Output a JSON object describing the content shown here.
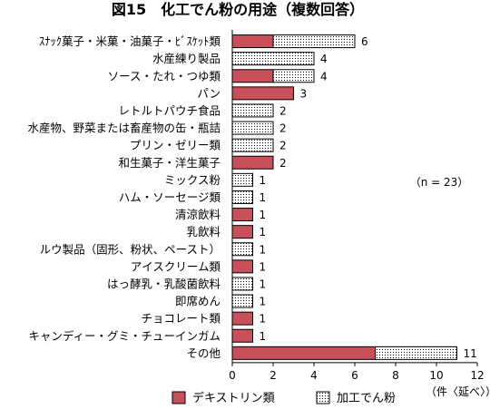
{
  "chart_data": {
    "type": "bar",
    "orientation": "horizontal",
    "stacked": true,
    "title": "図15　化工でん粉の用途（複数回答）",
    "categories": [
      "ｽﾅｯｸ菓子・米菓・油菓子・ﾋﾞｽｹｯﾄ類",
      "水産練り製品",
      "ソース・たれ・つゆ類",
      "パン",
      "レトルトパウチ食品",
      "水産物、野菜または畜産物の缶・瓶詰",
      "プリン・ゼリー類",
      "和生菓子・洋生菓子",
      "ミックス粉",
      "ハム・ソーセージ類",
      "清涼飲料",
      "乳飲料",
      "ルウ製品（固形、粉状、ペースト）",
      "アイスクリーム類",
      "はっ酵乳・乳酸菌飲料",
      "即席めん",
      "チョコレート類",
      "キャンディー・グミ・チューインガム",
      "その他"
    ],
    "series": [
      {
        "name": "デキストリン類",
        "color": "#c8505a",
        "pattern": "solid",
        "values": [
          2,
          0,
          2,
          3,
          0,
          0,
          0,
          2,
          0,
          0,
          1,
          1,
          0,
          1,
          0,
          0,
          1,
          1,
          7
        ]
      },
      {
        "name": "加工でん粉",
        "color": "#ffffff",
        "pattern": "dotted",
        "values": [
          4,
          4,
          2,
          0,
          2,
          2,
          2,
          0,
          1,
          1,
          0,
          0,
          1,
          0,
          1,
          1,
          0,
          0,
          4
        ]
      }
    ],
    "totals": [
      6,
      4,
      4,
      3,
      2,
      2,
      2,
      2,
      1,
      1,
      1,
      1,
      1,
      1,
      1,
      1,
      1,
      1,
      11
    ],
    "xlim": [
      0,
      12
    ],
    "xticks": [
      0,
      2,
      4,
      6,
      8,
      10,
      12
    ],
    "xlabel": "（件〈延べ〉）",
    "annotation": "（n = 23）",
    "legend_position": "bottom"
  }
}
